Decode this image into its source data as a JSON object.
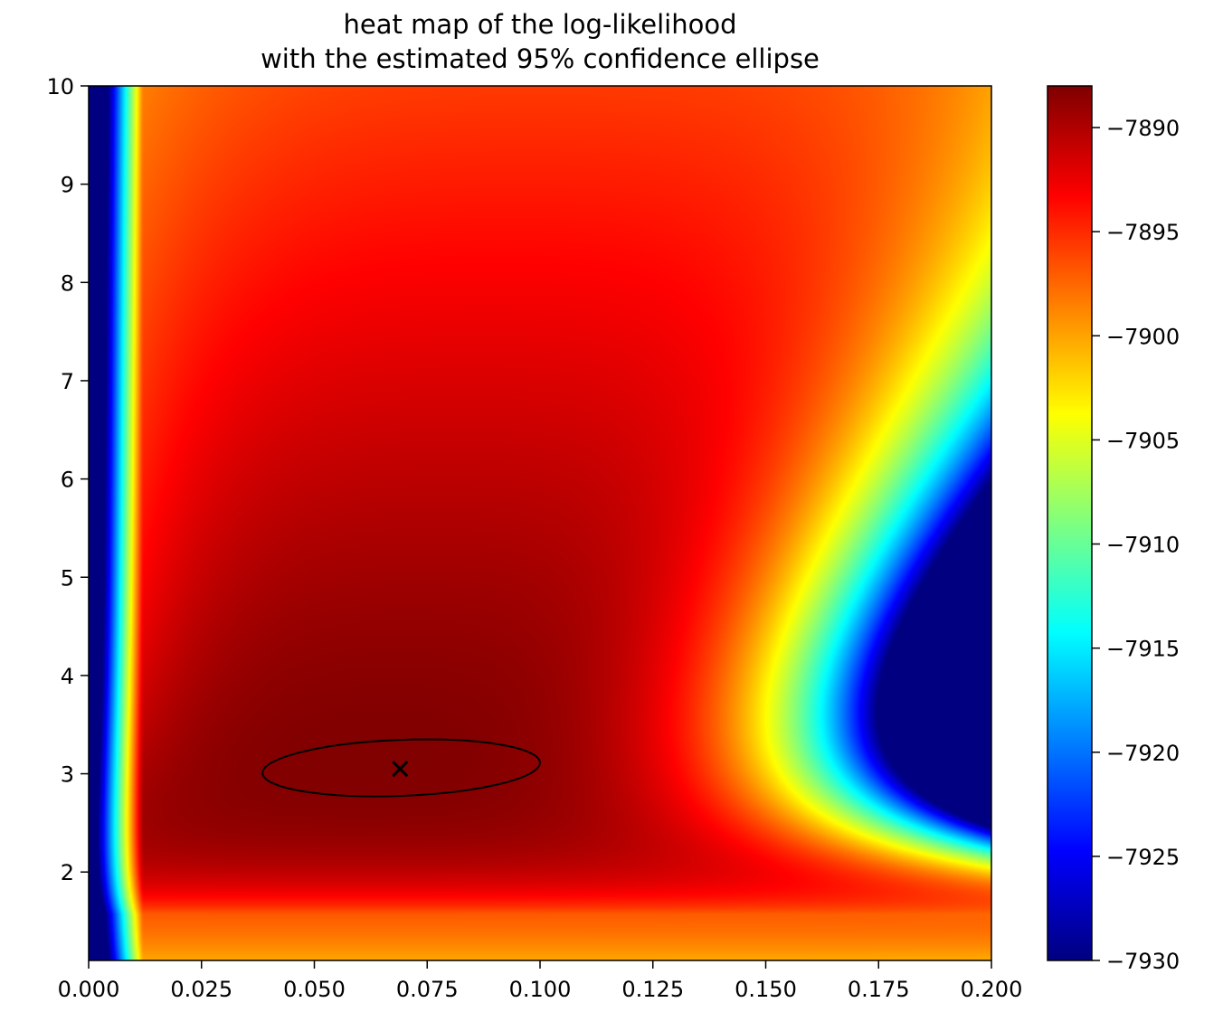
{
  "chart_data": {
    "type": "heatmap",
    "title_lines": [
      "heat map of the log-likelihood",
      "with the estimated 95% confidence ellipse"
    ],
    "xlabel": "",
    "ylabel": "",
    "xlim": [
      0.0,
      0.2
    ],
    "ylim": [
      1.1,
      10.0
    ],
    "x_ticks": [
      0.0,
      0.025,
      0.05,
      0.075,
      0.1,
      0.125,
      0.15,
      0.175,
      0.2
    ],
    "x_tick_labels": [
      "0.000",
      "0.025",
      "0.050",
      "0.075",
      "0.100",
      "0.125",
      "0.150",
      "0.175",
      "0.200"
    ],
    "y_ticks": [
      2,
      3,
      4,
      5,
      6,
      7,
      8,
      9,
      10
    ],
    "y_tick_labels": [
      "2",
      "3",
      "4",
      "5",
      "6",
      "7",
      "8",
      "9",
      "10"
    ],
    "colormap": "jet",
    "colorbar": {
      "range": [
        -7930,
        -7888
      ],
      "ticks": [
        -7890,
        -7895,
        -7900,
        -7905,
        -7910,
        -7915,
        -7920,
        -7925,
        -7930
      ],
      "tick_labels": [
        "−7890",
        "−7895",
        "−7900",
        "−7905",
        "−7910",
        "−7915",
        "−7920",
        "−7925",
        "−7930"
      ]
    },
    "maximum": {
      "x": 0.069,
      "y": 3.05,
      "value": -7888,
      "marker": "x"
    },
    "confidence_ellipse": {
      "label": "estimated 95% confidence ellipse",
      "center": [
        0.069,
        3.05
      ],
      "x_range": [
        0.0385,
        0.1
      ],
      "y_range": [
        2.75,
        3.37
      ]
    },
    "colors": {
      "marker": "#000000",
      "ellipse": "#000000",
      "frame": "#000000"
    }
  }
}
